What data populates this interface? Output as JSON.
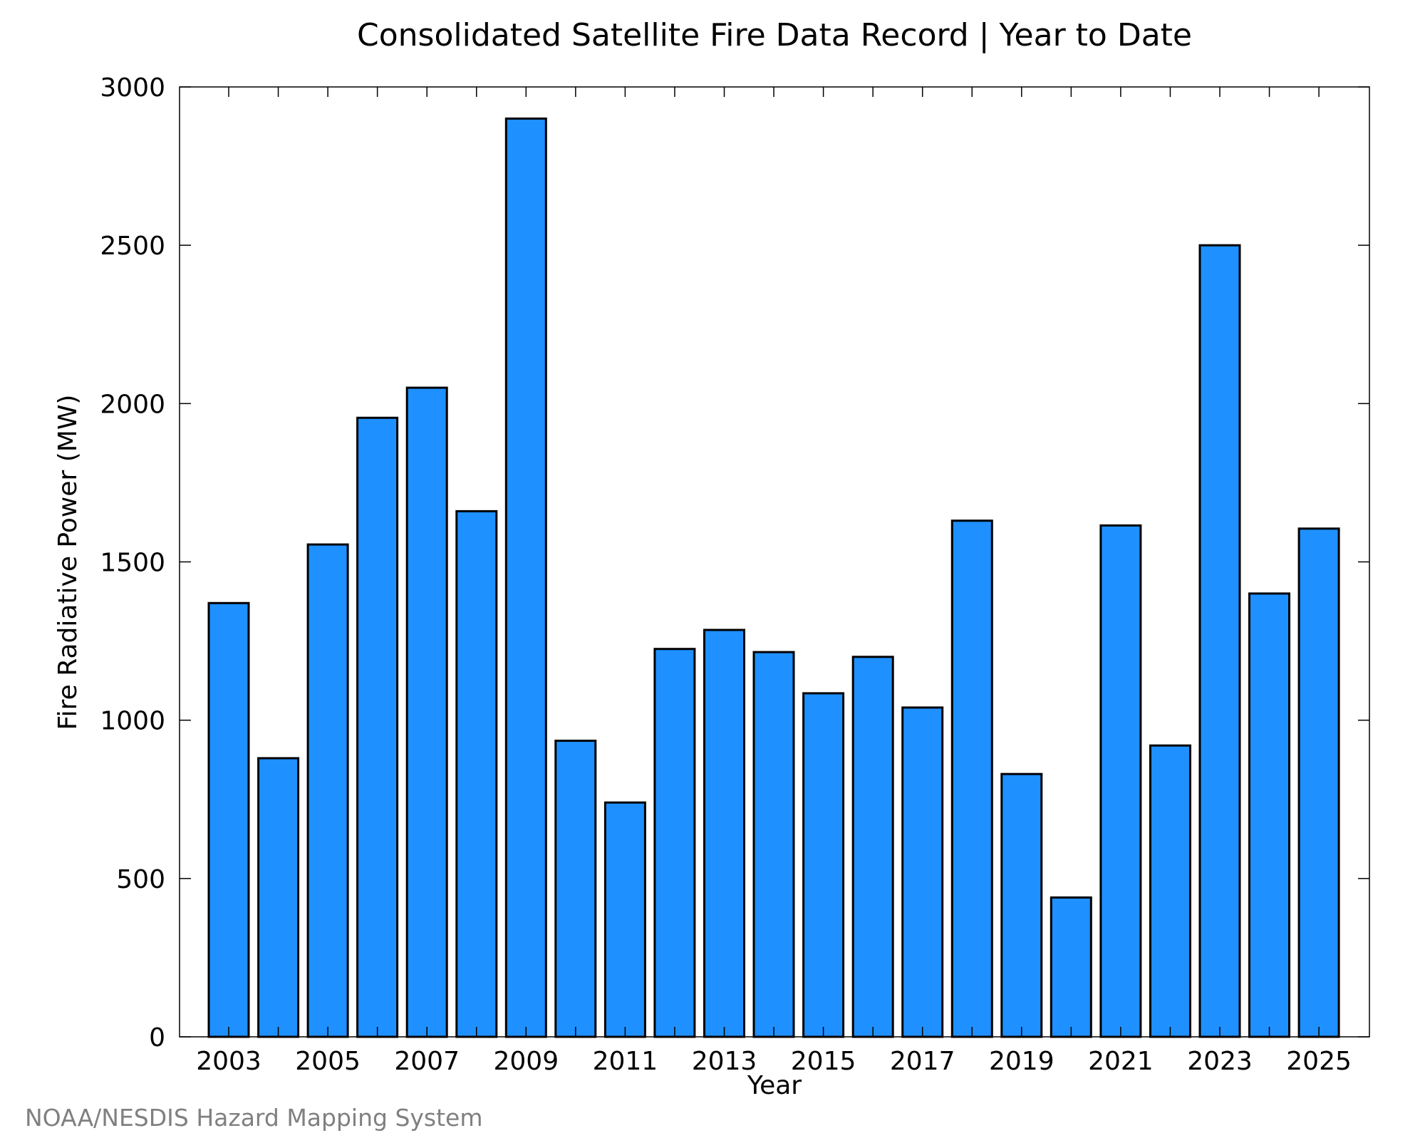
{
  "chart_data": {
    "type": "bar",
    "title": "Consolidated Satellite Fire Data Record | Year to Date",
    "xlabel": "Year",
    "ylabel": "Fire Radiative Power (MW)",
    "categories": [
      "2003",
      "2004",
      "2005",
      "2006",
      "2007",
      "2008",
      "2009",
      "2010",
      "2011",
      "2012",
      "2013",
      "2014",
      "2015",
      "2016",
      "2017",
      "2018",
      "2019",
      "2020",
      "2021",
      "2022",
      "2023",
      "2024",
      "2025"
    ],
    "values": [
      1370,
      880,
      1555,
      1955,
      2050,
      1660,
      2900,
      935,
      740,
      1225,
      1285,
      1215,
      1085,
      1200,
      1040,
      1630,
      830,
      440,
      1615,
      920,
      2500,
      1400,
      1605
    ],
    "x_tick_labels": [
      "2003",
      "2005",
      "2007",
      "2009",
      "2011",
      "2013",
      "2015",
      "2017",
      "2019",
      "2021",
      "2023",
      "2025"
    ],
    "y_ticks": [
      "0",
      "500",
      "1000",
      "1500",
      "2000",
      "2500",
      "3000"
    ],
    "y_tick_values": [
      0,
      500,
      1000,
      1500,
      2000,
      2500,
      3000
    ],
    "ylim": [
      0,
      3000
    ],
    "grid": false,
    "legend": "none",
    "bar_color": "#1e90ff",
    "bar_edge_color": "#000000"
  },
  "credit": "NOAA/NESDIS Hazard Mapping System"
}
